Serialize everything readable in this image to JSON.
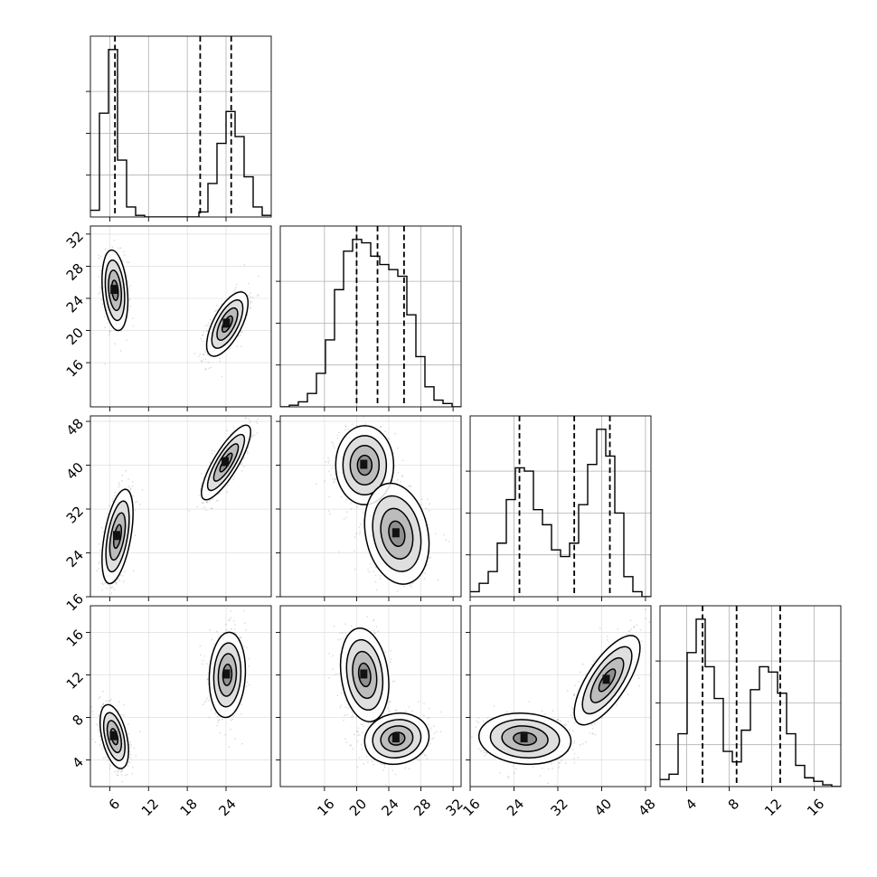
{
  "chart_data": {
    "type": "corner",
    "title": "",
    "parameters": [
      {
        "index": 0,
        "range": [
          3,
          31
        ],
        "ticks": [
          6,
          12,
          18,
          24
        ],
        "tick_labels": [
          "6",
          "12",
          "18",
          "24"
        ],
        "quantiles": [
          6.8,
          20.0,
          24.8
        ]
      },
      {
        "index": 1,
        "range": [
          10.5,
          33
        ],
        "ticks": [
          16,
          20,
          24,
          28,
          32
        ],
        "tick_labels": [
          "16",
          "20",
          "24",
          "28",
          "32"
        ],
        "quantiles": [
          20.0,
          22.6,
          25.9
        ]
      },
      {
        "index": 2,
        "range": [
          16,
          49
        ],
        "ticks": [
          16,
          24,
          32,
          40,
          48
        ],
        "tick_labels": [
          "16",
          "24",
          "32",
          "40",
          "48"
        ],
        "quantiles": [
          25.0,
          35.0,
          41.5
        ]
      },
      {
        "index": 3,
        "range": [
          1.5,
          18.5
        ],
        "ticks": [
          4,
          8,
          12,
          16
        ],
        "tick_labels": [
          "4",
          "8",
          "12",
          "16"
        ],
        "quantiles": [
          5.5,
          8.7,
          12.8
        ]
      }
    ],
    "histograms": [
      {
        "param": 0,
        "bins": [
          3,
          4.4,
          5.8,
          7.2,
          8.6,
          10,
          11.4,
          12.8,
          14.2,
          15.6,
          17,
          18.4,
          19.8,
          21.2,
          22.6,
          24,
          25.4,
          26.8,
          28.2,
          29.6,
          31
        ],
        "counts": [
          0.04,
          0.62,
          1.0,
          0.34,
          0.06,
          0.01,
          0,
          0,
          0,
          0,
          0,
          0,
          0.03,
          0.2,
          0.44,
          0.63,
          0.48,
          0.24,
          0.06,
          0.01
        ]
      },
      {
        "param": 1,
        "bins": [
          10.5,
          11.625,
          12.75,
          13.875,
          15,
          16.125,
          17.25,
          18.375,
          19.5,
          20.625,
          21.75,
          22.875,
          24,
          25.125,
          26.25,
          27.375,
          28.5,
          29.625,
          30.75,
          31.875,
          33
        ],
        "counts": [
          0,
          0.01,
          0.03,
          0.08,
          0.2,
          0.4,
          0.7,
          0.93,
          1.0,
          0.98,
          0.9,
          0.85,
          0.82,
          0.78,
          0.55,
          0.3,
          0.12,
          0.04,
          0.02,
          0
        ]
      },
      {
        "param": 2,
        "bins": [
          16,
          17.65,
          19.3,
          20.95,
          22.6,
          24.25,
          25.9,
          27.55,
          29.2,
          30.85,
          32.5,
          34.15,
          35.8,
          37.45,
          39.1,
          40.75,
          42.4,
          44.05,
          45.7,
          47.35,
          49
        ],
        "counts": [
          0.03,
          0.08,
          0.15,
          0.32,
          0.58,
          0.77,
          0.75,
          0.52,
          0.43,
          0.28,
          0.24,
          0.32,
          0.55,
          0.79,
          1.0,
          0.84,
          0.5,
          0.12,
          0.03,
          0
        ]
      },
      {
        "param": 3,
        "bins": [
          1.5,
          2.35,
          3.2,
          4.05,
          4.9,
          5.75,
          6.6,
          7.45,
          8.3,
          9.15,
          10,
          10.85,
          11.7,
          12.55,
          13.4,
          14.25,
          15.1,
          15.95,
          16.8,
          17.65,
          18.5
        ],
        "counts": [
          0.04,
          0.07,
          0.3,
          0.76,
          0.95,
          0.68,
          0.5,
          0.2,
          0.14,
          0.32,
          0.55,
          0.68,
          0.65,
          0.53,
          0.3,
          0.12,
          0.05,
          0.03,
          0.01,
          0
        ]
      }
    ],
    "pairs": [
      {
        "x_param": 0,
        "y_param": 1,
        "modes": [
          {
            "x": 6.8,
            "y": 25,
            "sx": 1.0,
            "sy": 2.5,
            "rho": -0.25,
            "weight": 0.52
          },
          {
            "x": 24.2,
            "y": 20.8,
            "sx": 1.6,
            "sy": 2.0,
            "rho": 0.65,
            "weight": 0.48
          }
        ]
      },
      {
        "x_param": 0,
        "y_param": 2,
        "modes": [
          {
            "x": 7.2,
            "y": 27,
            "sx": 1.2,
            "sy": 4.3,
            "rho": 0.5,
            "weight": 0.5
          },
          {
            "x": 24,
            "y": 40.5,
            "sx": 1.9,
            "sy": 3.4,
            "rho": 0.82,
            "weight": 0.5
          }
        ]
      },
      {
        "x_param": 0,
        "y_param": 3,
        "modes": [
          {
            "x": 6.7,
            "y": 6.2,
            "sx": 1.1,
            "sy": 1.5,
            "rho": -0.45,
            "weight": 0.52
          },
          {
            "x": 24.2,
            "y": 12,
            "sx": 1.4,
            "sy": 2.0,
            "rho": 0.1,
            "weight": 0.48
          }
        ]
      },
      {
        "x_param": 1,
        "y_param": 2,
        "modes": [
          {
            "x": 21,
            "y": 40,
            "sx": 1.8,
            "sy": 3.6,
            "rho": 0,
            "weight": 0.5
          },
          {
            "x": 25,
            "y": 27.5,
            "sx": 2.0,
            "sy": 4.6,
            "rho": -0.2,
            "weight": 0.5
          }
        ]
      },
      {
        "x_param": 1,
        "y_param": 3,
        "modes": [
          {
            "x": 21,
            "y": 12,
            "sx": 1.5,
            "sy": 2.2,
            "rho": -0.2,
            "weight": 0.52
          },
          {
            "x": 25,
            "y": 6,
            "sx": 2.0,
            "sy": 1.2,
            "rho": 0.1,
            "weight": 0.48
          }
        ]
      },
      {
        "x_param": 2,
        "y_param": 3,
        "modes": [
          {
            "x": 26,
            "y": 6,
            "sx": 4.2,
            "sy": 1.2,
            "rho": -0.1,
            "weight": 0.5
          },
          {
            "x": 41,
            "y": 11.5,
            "sx": 3.0,
            "sy": 2.1,
            "rho": 0.72,
            "weight": 0.5
          }
        ]
      }
    ],
    "contour_levels_sigma": [
      0.5,
      1.0,
      1.5,
      2.0
    ],
    "quantile_line_style": "dashed",
    "grid": true,
    "legend": "none"
  }
}
